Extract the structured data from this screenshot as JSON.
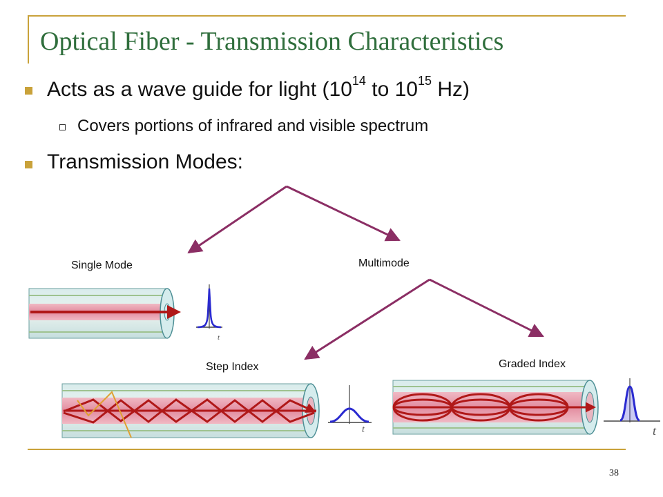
{
  "slide": {
    "title": "Optical Fiber - Transmission Characteristics",
    "page_number": "38"
  },
  "bullets": {
    "b1_text": "Acts as a wave guide for light (10",
    "b1_exp1": "14",
    "b1_mid": " to 10",
    "b1_exp2": "15",
    "b1_end": " Hz)",
    "sub1": "Covers portions of infrared and visible spectrum",
    "b2": "Transmission Modes:"
  },
  "diagram": {
    "single_mode": "Single Mode",
    "multimode": "Multimode",
    "step_index": "Step Index",
    "graded_index": "Graded Index",
    "time_axis": "t",
    "colors": {
      "accent": "#c9a23a",
      "title": "#2f6e3c",
      "arrow": "#8b2e64",
      "ray": "#b01818",
      "pulse": "#2a2ad0"
    }
  }
}
